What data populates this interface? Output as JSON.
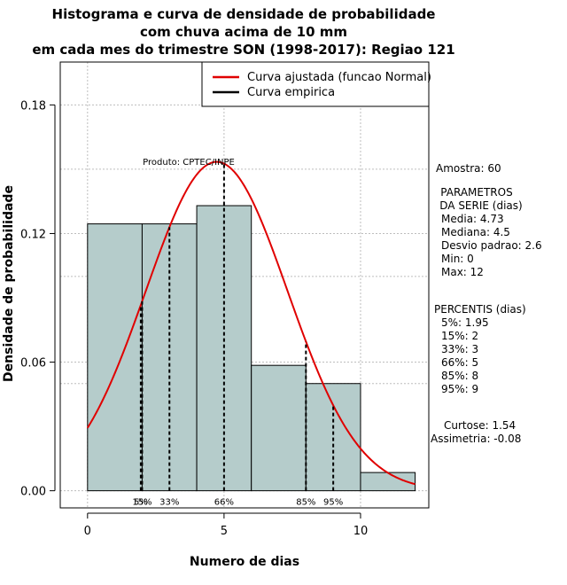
{
  "chart_data": {
    "type": "bar",
    "title_lines": [
      "Histograma e curva de densidade de probabilidade",
      "com chuva acima de 10 mm",
      "em cada mes do trimestre SON (1998-2017): Regiao 121"
    ],
    "xlabel": "Numero de dias",
    "ylabel": "Densidade de probabilidade",
    "xlim": [
      -1,
      12.5
    ],
    "ylim": [
      -0.008,
      0.2
    ],
    "x_ticks": [
      0,
      5,
      10
    ],
    "y_ticks": [
      0.0,
      0.06,
      0.12,
      0.18
    ],
    "y_tick_labels": [
      "0.00",
      "0.06",
      "0.12",
      "0.18"
    ],
    "grid": true,
    "bins": [
      {
        "x0": 0,
        "x1": 2,
        "density": 0.1245
      },
      {
        "x0": 2,
        "x1": 4,
        "density": 0.1245
      },
      {
        "x0": 4,
        "x1": 6,
        "density": 0.133
      },
      {
        "x0": 6,
        "x1": 8,
        "density": 0.0585
      },
      {
        "x0": 8,
        "x1": 10,
        "density": 0.05
      },
      {
        "x0": 10,
        "x1": 12,
        "density": 0.0085
      }
    ],
    "bar_color": "#b5cccb",
    "normal_curve": {
      "mean": 4.73,
      "sd": 2.6,
      "color": "#e00000"
    },
    "percentile_lines": [
      {
        "label": "5%",
        "x": 1.95
      },
      {
        "label": "15%",
        "x": 2
      },
      {
        "label": "33%",
        "x": 3
      },
      {
        "label": "66%",
        "x": 5
      },
      {
        "label": "85%",
        "x": 8
      },
      {
        "label": "95%",
        "x": 9
      }
    ],
    "legend": {
      "position": "top-right",
      "items": [
        {
          "label": "Curva ajustada (funcao Normal)",
          "color": "#e00000"
        },
        {
          "label": "Curva empirica",
          "color": "#000000"
        }
      ]
    },
    "annotation": "Produto: CPTEC/INPE",
    "side_text": {
      "amostra": "Amostra: 60",
      "param_title_1": "PARAMETROS",
      "param_title_2": "DA SERIE (dias)",
      "media": "Media: 4.73",
      "mediana": "Mediana: 4.5",
      "desvio": "Desvio padrao: 2.6",
      "min": "Min: 0",
      "max": "Max: 12",
      "perc_title": "PERCENTIS (dias)",
      "p5": "5%: 1.95",
      "p15": "15%: 2",
      "p33": "33%: 3",
      "p66": "66%: 5",
      "p85": "85%: 8",
      "p95": "95%: 9",
      "curtose": "Curtose: 1.54",
      "assimetria": "Assimetria: -0.08"
    }
  }
}
